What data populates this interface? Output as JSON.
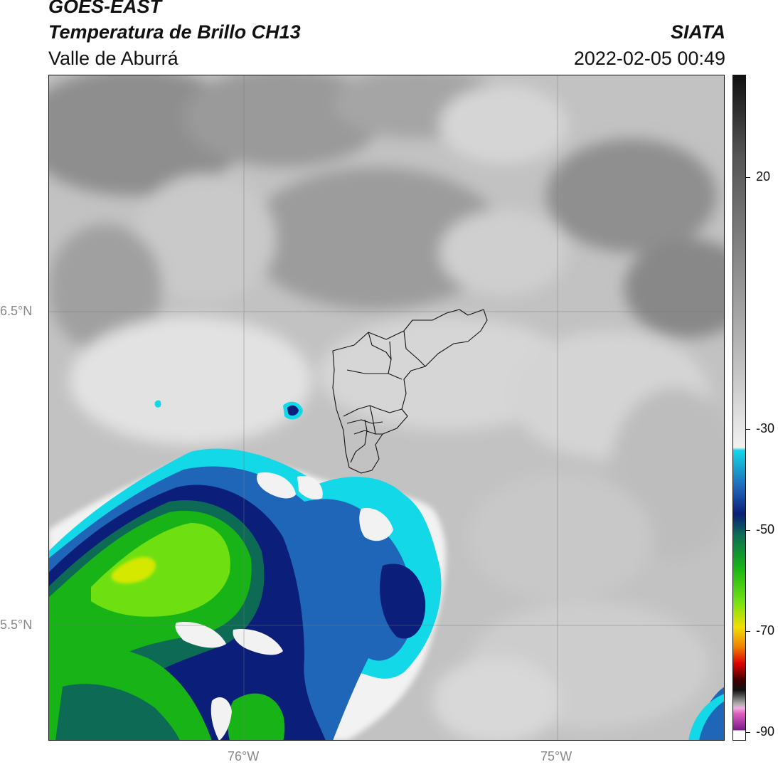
{
  "header": {
    "satellite": "GOES-EAST",
    "product": "Temperatura de Brillo CH13",
    "region": "Valle de Aburrá",
    "organization": "SIATA",
    "timestamp": "2022-02-05 00:49"
  },
  "map": {
    "lat_labels": [
      "6.5°N",
      "5.5°N"
    ],
    "lon_labels": [
      "76°W",
      "75°W"
    ],
    "colors": {
      "cloud_warm_dark": "#8a8a8a",
      "cloud_mid": "#b4b4b4",
      "cloud_light": "#dcdcdc",
      "cold_white": "#f4f4f4",
      "cyan": "#12d8e8",
      "blue": "#1f66b8",
      "navy": "#0a1e7a",
      "dark_green": "#0d6a55",
      "green": "#17b317",
      "lime": "#6ee012",
      "yellow": "#e3e800"
    }
  },
  "colorbar": {
    "tick_labels": [
      "20",
      "-30",
      "-50",
      "-70",
      "-90"
    ]
  }
}
